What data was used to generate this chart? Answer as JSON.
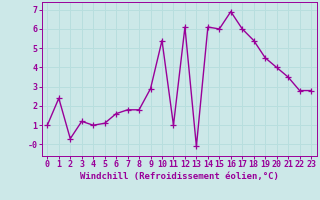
{
  "x": [
    0,
    1,
    2,
    3,
    4,
    5,
    6,
    7,
    8,
    9,
    10,
    11,
    12,
    13,
    14,
    15,
    16,
    17,
    18,
    19,
    20,
    21,
    22,
    23
  ],
  "y": [
    1.0,
    2.4,
    0.3,
    1.2,
    1.0,
    1.1,
    1.6,
    1.8,
    1.8,
    2.9,
    5.4,
    1.0,
    6.1,
    -0.1,
    6.1,
    6.0,
    6.9,
    6.0,
    5.4,
    4.5,
    4.0,
    3.5,
    2.8,
    2.8
  ],
  "line_color": "#990099",
  "marker": "+",
  "markersize": 4,
  "linewidth": 1.0,
  "bg_color": "#cce8e8",
  "grid_color": "#aad4d4",
  "xlabel": "Windchill (Refroidissement éolien,°C)",
  "xlim": [
    -0.5,
    23.5
  ],
  "ylim": [
    -0.6,
    7.4
  ],
  "yticks": [
    0,
    1,
    2,
    3,
    4,
    5,
    6,
    7
  ],
  "ytick_labels": [
    "-0",
    "1",
    "2",
    "3",
    "4",
    "5",
    "6",
    "7"
  ],
  "xticks": [
    0,
    1,
    2,
    3,
    4,
    5,
    6,
    7,
    8,
    9,
    10,
    11,
    12,
    13,
    14,
    15,
    16,
    17,
    18,
    19,
    20,
    21,
    22,
    23
  ],
  "tick_color": "#990099",
  "xlabel_color": "#990099",
  "label_fontsize": 6.5,
  "tick_fontsize": 6.0
}
